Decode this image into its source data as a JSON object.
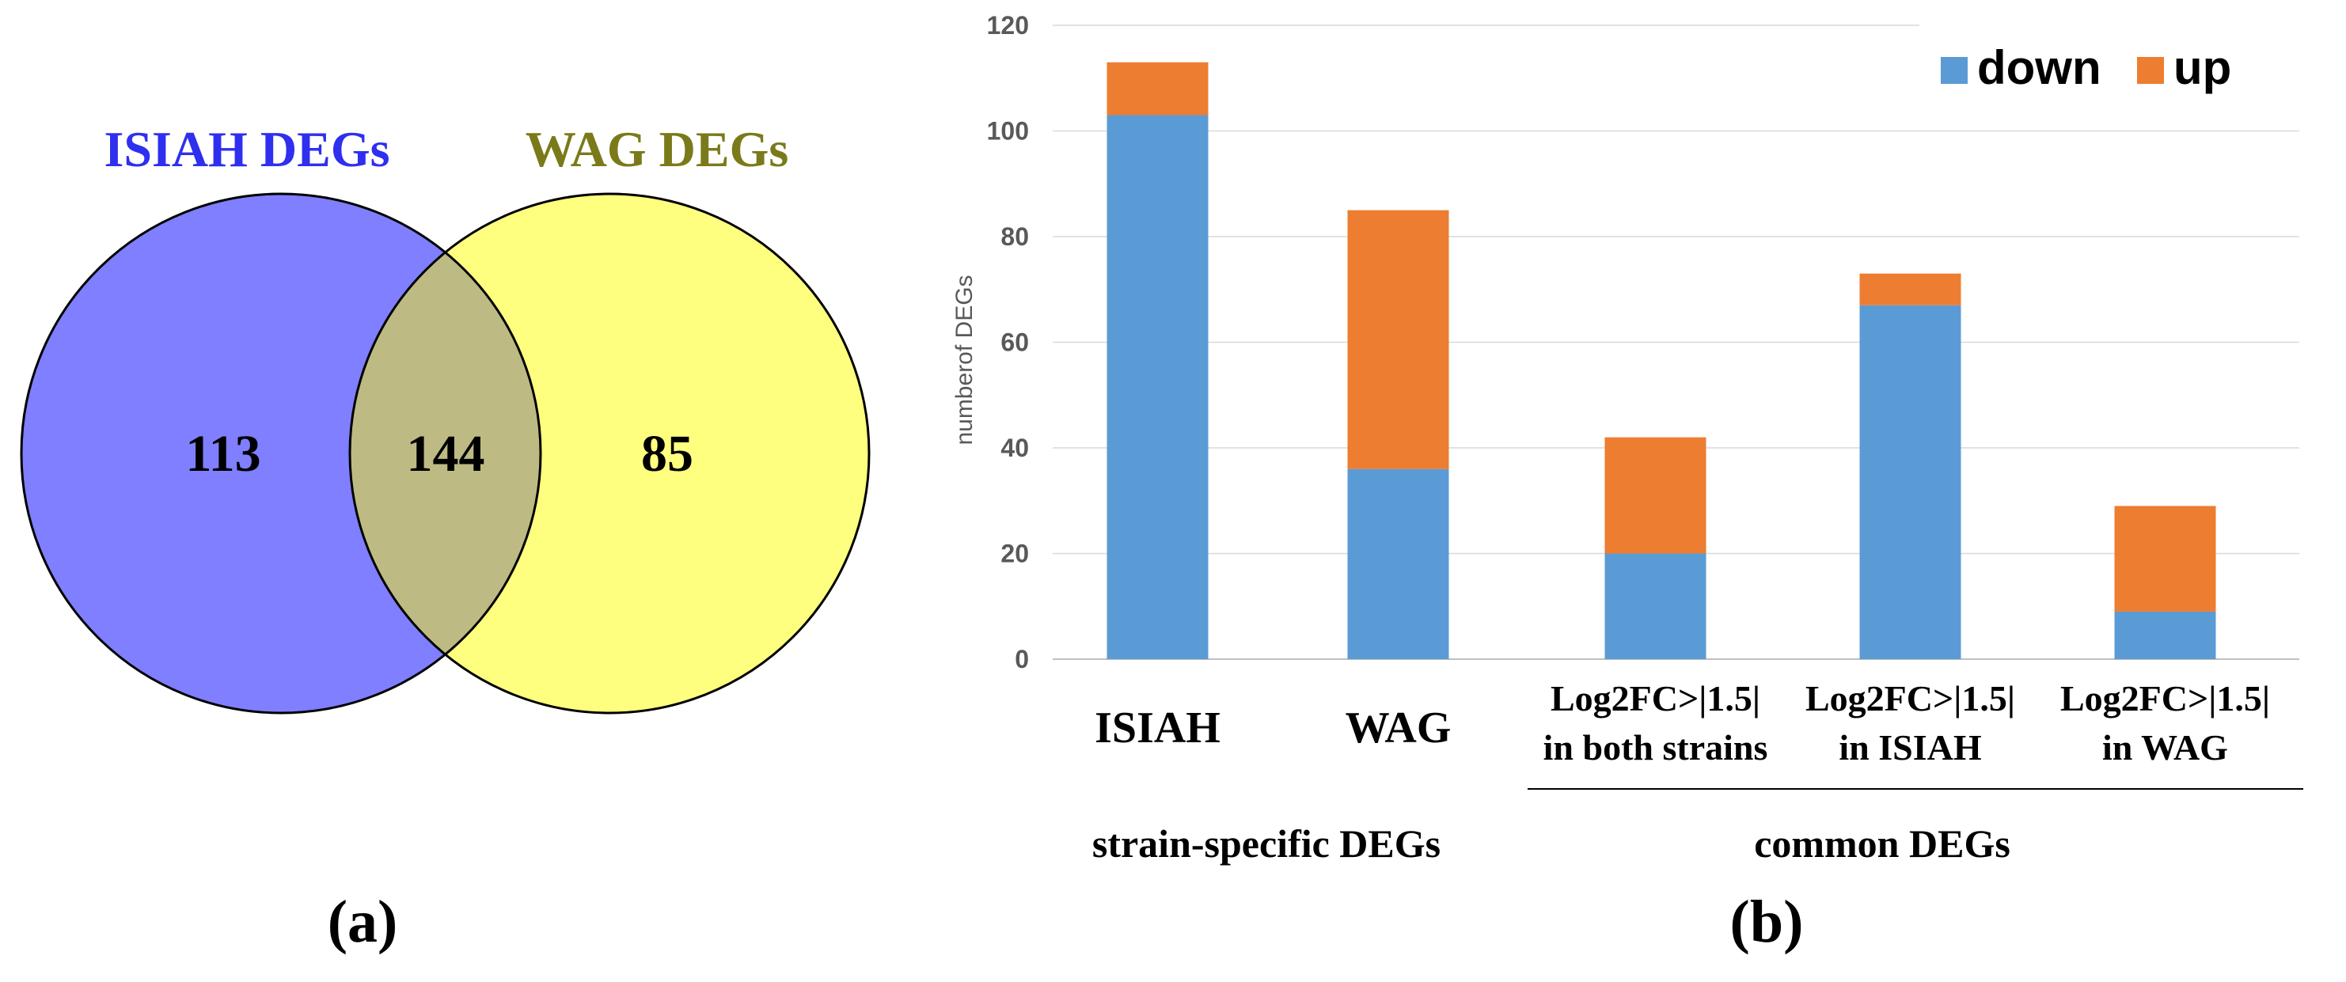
{
  "venn": {
    "left_label": "ISIAH DEGs",
    "right_label": "WAG DEGs",
    "left_only": "113",
    "overlap": "144",
    "right_only": "85",
    "left_color": "#7f7fff",
    "right_color": "#ffff7f",
    "overlap_color": "#bdbb83",
    "left_label_color": "#2f2fef",
    "right_label_color": "#7a7a1a"
  },
  "panel_labels": {
    "a": "(a)",
    "b": "(b)"
  },
  "chart_data": {
    "type": "bar",
    "stacked": true,
    "categories": [
      [
        "ISIAH"
      ],
      [
        "WAG"
      ],
      [
        "Log2FC>|1.5|",
        "in both strains"
      ],
      [
        "Log2FC>|1.5|",
        "in ISIAH"
      ],
      [
        "Log2FC>|1.5|",
        "in WAG"
      ]
    ],
    "series": [
      {
        "name": "down",
        "color": "#5b9bd5",
        "values": [
          103,
          36,
          20,
          67,
          9
        ]
      },
      {
        "name": "up",
        "color": "#ed7d31",
        "values": [
          10,
          49,
          22,
          6,
          20
        ]
      }
    ],
    "ylabel": "numberof DEGs",
    "ylim": [
      0,
      120
    ],
    "yticks": [
      "0",
      "20",
      "40",
      "60",
      "80",
      "100",
      "120"
    ],
    "grid": true,
    "legend_position": "top-right",
    "groups": [
      {
        "label": "strain-specific DEGs"
      },
      {
        "label": "common DEGs"
      }
    ]
  }
}
